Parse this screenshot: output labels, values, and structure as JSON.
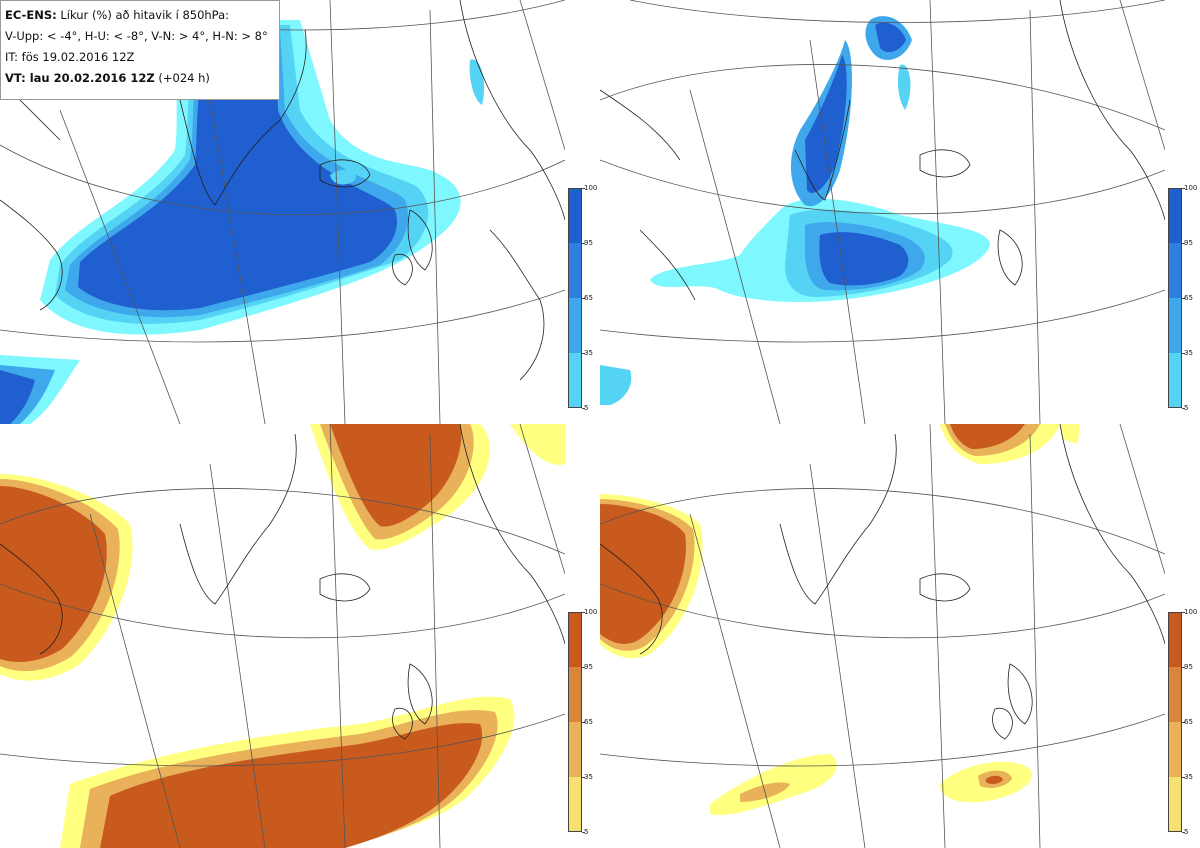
{
  "info_box": {
    "title_bold": "EC-ENS:",
    "title_rest": " Líkur (%) að hitavik í 850hPa:",
    "line2": "V-Upp: < -4°, H-U: < -8°, V-N: > 4°, H-N: > 8°",
    "line3": "IT: fös 19.02.2016 12Z",
    "line4_bold": "VT: lau 20.02.2016 12Z",
    "line4_rest": " (+024 h)"
  },
  "panels": [
    {
      "id": "v-upp",
      "scheme": "blue"
    },
    {
      "id": "h-u",
      "scheme": "blue"
    },
    {
      "id": "v-n",
      "scheme": "orange"
    },
    {
      "id": "h-n",
      "scheme": "orange"
    }
  ],
  "colorbar": {
    "ticks": [
      "100",
      "95",
      "65",
      "35",
      "5"
    ]
  },
  "colors": {
    "blue_levels": [
      "#7ff7ff",
      "#55d3f5",
      "#3fa8ec",
      "#2f7fe0",
      "#1f5fcf"
    ],
    "orange_levels": [
      "#ffff80",
      "#f6e070",
      "#e9b15a",
      "#d9853b",
      "#c85a1e"
    ],
    "coast": "#222222",
    "grid": "#555555"
  }
}
